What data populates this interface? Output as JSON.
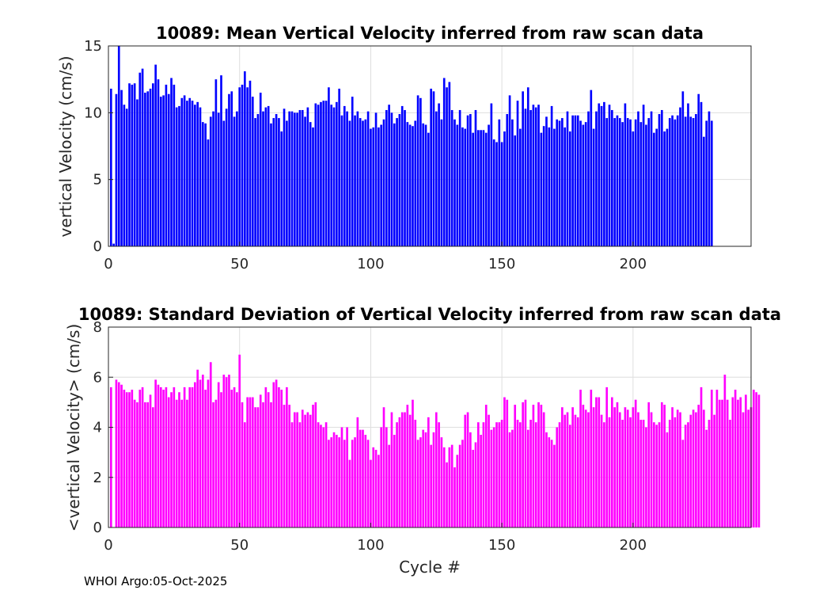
{
  "chart_data": [
    {
      "type": "bar",
      "title": "10089: Mean Vertical Velocity inferred from raw scan data",
      "xlabel": "",
      "ylabel": "vertical Velocity (cm/s)",
      "xlim": [
        0,
        245
      ],
      "ylim": [
        0,
        15
      ],
      "xticks": [
        0,
        50,
        100,
        150,
        200
      ],
      "yticks": [
        0,
        5,
        10,
        15
      ],
      "grid": true,
      "color": "#0000ff",
      "x_start": 1,
      "values": [
        11.8,
        0.2,
        11.4,
        15.0,
        11.7,
        10.6,
        10.3,
        12.2,
        12.1,
        12.2,
        11.0,
        13.0,
        13.3,
        11.5,
        11.6,
        11.8,
        12.2,
        13.6,
        12.5,
        11.2,
        11.3,
        12.1,
        11.4,
        12.6,
        12.1,
        10.4,
        10.5,
        11.1,
        11.3,
        10.9,
        11.1,
        10.9,
        10.6,
        10.8,
        10.4,
        9.3,
        9.2,
        8.0,
        9.7,
        10.1,
        12.5,
        10.0,
        12.8,
        9.4,
        10.3,
        11.4,
        11.6,
        9.7,
        10.1,
        11.9,
        12.1,
        13.1,
        11.9,
        12.4,
        11.2,
        9.6,
        9.9,
        11.5,
        10.1,
        10.4,
        10.5,
        9.2,
        9.6,
        9.9,
        9.6,
        8.6,
        10.3,
        9.4,
        10.1,
        10.1,
        10.0,
        10.0,
        10.2,
        10.2,
        9.7,
        10.4,
        9.3,
        8.9,
        10.7,
        10.6,
        10.8,
        10.9,
        10.9,
        11.9,
        10.6,
        10.4,
        10.8,
        11.8,
        9.8,
        10.5,
        10.1,
        9.4,
        11.2,
        9.8,
        10.1,
        9.6,
        9.4,
        9.5,
        10.1,
        8.8,
        8.9,
        10.0,
        8.9,
        9.1,
        9.5,
        10.2,
        10.6,
        10.0,
        9.2,
        9.6,
        9.9,
        10.5,
        10.2,
        9.3,
        9.1,
        9.0,
        9.4,
        11.3,
        11.1,
        9.2,
        9.1,
        8.5,
        11.8,
        11.6,
        10.1,
        10.7,
        9.5,
        12.6,
        11.9,
        12.3,
        10.2,
        9.5,
        9.1,
        10.2,
        8.9,
        8.8,
        9.8,
        9.9,
        8.5,
        10.2,
        8.7,
        8.7,
        8.7,
        8.5,
        9.1,
        10.7,
        8.0,
        7.8,
        9.5,
        7.8,
        8.6,
        9.9,
        11.3,
        9.5,
        8.3,
        10.9,
        8.8,
        11.6,
        10.3,
        11.9,
        10.2,
        10.6,
        10.4,
        10.6,
        8.5,
        9.0,
        9.7,
        8.9,
        10.5,
        8.8,
        9.5,
        9.4,
        9.6,
        8.9,
        10.1,
        8.6,
        9.8,
        9.8,
        9.8,
        9.4,
        9.1,
        9.3,
        10.1,
        11.7,
        8.8,
        10.1,
        10.7,
        10.5,
        10.8,
        9.6,
        10.6,
        10.2,
        9.6,
        9.8,
        9.6,
        9.3,
        10.7,
        9.6,
        9.5,
        8.6,
        9.5,
        10.1,
        9.3,
        10.6,
        9.1,
        9.6,
        10.1,
        8.5,
        8.8,
        9.9,
        10.2,
        8.6,
        8.8,
        9.6,
        9.8,
        9.5,
        9.8,
        10.4,
        11.6,
        9.7,
        10.7,
        9.7,
        9.6,
        9.9,
        11.4,
        10.8,
        8.2,
        9.4,
        10.1,
        9.4
      ]
    },
    {
      "type": "bar",
      "title": "10089: Standard Deviation of Vertical Velocity inferred from raw scan data",
      "xlabel": "Cycle #",
      "ylabel": "<vertical Velocity> (cm/s)",
      "xlim": [
        0,
        245
      ],
      "ylim": [
        0,
        8
      ],
      "xticks": [
        0,
        50,
        100,
        150,
        200
      ],
      "yticks": [
        0,
        2,
        4,
        6,
        8
      ],
      "grid": true,
      "color": "#ff00ff",
      "x_start": 1,
      "values": [
        5.6,
        0.0,
        5.9,
        5.8,
        5.7,
        5.5,
        5.4,
        5.4,
        5.5,
        5.1,
        5.0,
        5.5,
        5.6,
        5.0,
        5.0,
        5.3,
        4.8,
        5.9,
        5.7,
        5.6,
        5.5,
        5.6,
        5.2,
        5.4,
        5.6,
        5.1,
        5.4,
        5.1,
        5.6,
        5.1,
        5.6,
        5.6,
        5.8,
        6.3,
        5.9,
        6.1,
        5.5,
        5.9,
        6.6,
        5.0,
        5.1,
        5.8,
        5.4,
        6.1,
        6.0,
        6.1,
        5.5,
        5.6,
        5.4,
        6.9,
        5.0,
        4.2,
        5.2,
        5.2,
        5.2,
        4.8,
        4.8,
        5.3,
        5.0,
        5.6,
        5.4,
        5.0,
        5.8,
        5.9,
        5.6,
        5.5,
        4.9,
        5.6,
        4.9,
        4.2,
        4.6,
        4.6,
        4.2,
        4.7,
        4.5,
        4.6,
        4.5,
        4.9,
        5.0,
        4.2,
        4.1,
        4.0,
        4.2,
        3.5,
        3.6,
        3.8,
        3.7,
        3.6,
        4.0,
        3.5,
        4.0,
        2.7,
        3.5,
        3.6,
        4.4,
        3.9,
        3.9,
        3.7,
        3.5,
        2.7,
        3.2,
        3.1,
        2.9,
        4.0,
        4.8,
        4.0,
        3.3,
        4.6,
        3.7,
        4.2,
        4.4,
        4.6,
        4.6,
        4.9,
        4.5,
        5.1,
        4.3,
        3.5,
        3.6,
        3.9,
        3.8,
        4.4,
        3.3,
        3.8,
        4.6,
        4.2,
        3.6,
        3.2,
        2.6,
        3.2,
        3.3,
        2.4,
        2.9,
        3.3,
        3.5,
        4.5,
        4.6,
        3.8,
        3.1,
        3.4,
        4.2,
        3.7,
        4.2,
        4.9,
        4.5,
        3.9,
        4.0,
        4.2,
        4.2,
        4.3,
        5.2,
        5.1,
        3.8,
        3.9,
        4.9,
        4.3,
        4.2,
        5.0,
        5.1,
        3.9,
        4.3,
        4.9,
        4.2,
        5.0,
        4.9,
        4.6,
        3.8,
        3.6,
        3.5,
        3.3,
        4.0,
        4.2,
        4.8,
        4.5,
        4.6,
        4.1,
        4.8,
        4.5,
        4.4,
        5.5,
        4.9,
        4.7,
        4.6,
        5.5,
        4.8,
        5.2,
        5.2,
        4.5,
        4.2,
        5.6,
        4.4,
        5.2,
        4.8,
        5.0,
        4.6,
        4.3,
        4.8,
        4.7,
        4.4,
        4.8,
        5.1,
        4.6,
        4.3,
        4.3,
        4.0,
        5.0,
        4.6,
        4.2,
        4.1,
        4.2,
        5.0,
        4.9,
        3.8,
        4.3,
        4.8,
        4.4,
        4.7,
        4.6,
        3.5,
        4.1,
        4.2,
        4.5,
        4.7,
        4.6,
        4.9,
        5.6,
        4.7,
        3.9,
        4.3,
        5.5,
        4.5,
        5.5,
        5.1,
        5.1,
        6.1,
        5.1,
        4.3,
        5.2,
        5.5,
        5.1,
        5.2,
        4.6,
        5.3,
        4.7,
        4.8,
        5.5,
        5.4,
        5.3
      ]
    }
  ],
  "footer": "WHOI Argo:05-Oct-2025"
}
